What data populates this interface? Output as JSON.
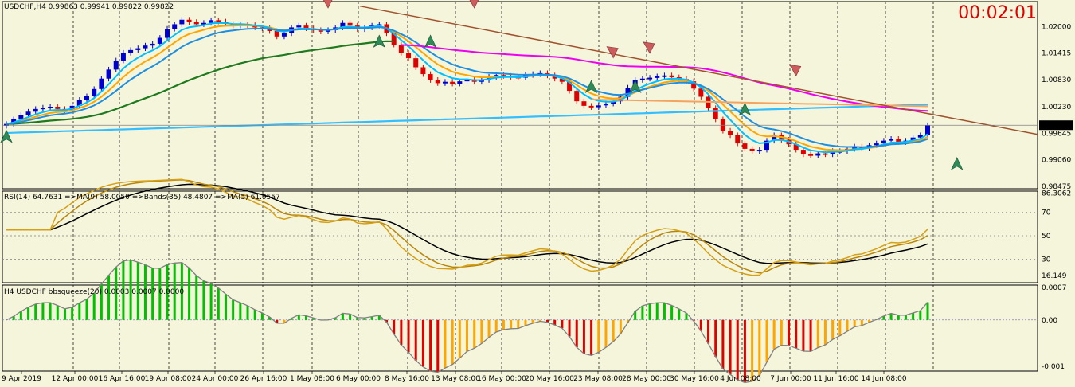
{
  "main_title": "USDCHF,H4  0.99863 0.99941 0.99822 0.99822",
  "clock": "00:02:01",
  "rsi_title": "RSI(14) 64.7631  =>MA(9) 58.0050  =>Bands(35) 48.4807  =>MA(5) 61.9557",
  "bbs_title": "H4 USDCHF bbsqueeze(20) 0.0003 0.0007 0.0000",
  "colors": {
    "background": "#F5F5DC",
    "bull": "#0000CD",
    "bear": "#E00000",
    "ma_fast": "#FFA500",
    "ma_mid": "#00BFFF",
    "ma_slow": "#1E8FE0",
    "ma_long": "#1F7A1F",
    "ma_200": "#33BFFF",
    "magenta": "#EE00EE",
    "trendline": "#A0522D",
    "peach_level": "#F4A460",
    "rsi": "#D4A017",
    "rsi_ma": "#B8860B",
    "rsi_bands": "#000000",
    "hist_green": "#00C000",
    "hist_red": "#E00000",
    "hist_orange": "#FFA500"
  },
  "chart_data": [
    {
      "type": "candlestick",
      "symbol": "USDCHF",
      "timeframe": "H4",
      "price_axis_labels": [
        "1.02000",
        "1.01415",
        "1.00830",
        "1.00230",
        "0.99645",
        "0.99060",
        "0.98475"
      ],
      "price_axis_values": [
        1.02,
        1.01415,
        1.0083,
        1.0023,
        0.99645,
        0.9906,
        0.98475
      ],
      "current_price_label": "0.99822",
      "current_price": 0.99822,
      "ylim": [
        0.9842,
        1.0255
      ],
      "time_labels": [
        "9 Apr 2019",
        "12 Apr 00:00",
        "16 Apr 16:00",
        "19 Apr 08:00",
        "24 Apr 00:00",
        "26 Apr 16:00",
        "1 May 08:00",
        "6 May 00:00",
        "8 May 16:00",
        "13 May 08:00",
        "16 May 00:00",
        "20 May 16:00",
        "23 May 08:00",
        "28 May 00:00",
        "30 May 16:00",
        "4 Jun 08:00",
        "7 Jun 00:00",
        "11 Jun 16:00",
        "14 Jun 08:00"
      ],
      "closes": [
        0.9985,
        0.9995,
        1.0005,
        1.0012,
        1.0018,
        1.0021,
        1.0023,
        1.0018,
        1.0015,
        1.0025,
        1.0038,
        1.0046,
        1.0062,
        1.0085,
        1.0105,
        1.0125,
        1.0142,
        1.0148,
        1.0152,
        1.0158,
        1.0162,
        1.0175,
        1.0195,
        1.0205,
        1.0215,
        1.021,
        1.0205,
        1.0208,
        1.0214,
        1.0211,
        1.0206,
        1.0202,
        1.0205,
        1.0203,
        1.0198,
        1.0196,
        1.019,
        1.0178,
        1.0185,
        1.0198,
        1.0202,
        1.0196,
        1.0192,
        1.0189,
        1.0192,
        1.0198,
        1.0208,
        1.0202,
        1.0194,
        1.0198,
        1.0202,
        1.0205,
        1.0185,
        1.016,
        1.0142,
        1.013,
        1.011,
        1.0095,
        1.0082,
        1.0075,
        1.0078,
        1.0074,
        1.0079,
        1.0083,
        1.0078,
        1.0082,
        1.0089,
        1.0093,
        1.0091,
        1.0089,
        1.0087,
        1.0093,
        1.0095,
        1.0097,
        1.0092,
        1.0085,
        1.0078,
        1.0058,
        1.0035,
        1.0025,
        1.0022,
        1.0026,
        1.003,
        1.0035,
        1.0045,
        1.0065,
        1.0082,
        1.0085,
        1.0087,
        1.009,
        1.0092,
        1.0088,
        1.0084,
        1.0079,
        1.0063,
        1.0045,
        1.002,
        0.9995,
        0.997,
        0.996,
        0.9942,
        0.993,
        0.9925,
        0.9928,
        0.9948,
        0.996,
        0.995,
        0.994,
        0.9928,
        0.9918,
        0.9915,
        0.992,
        0.9918,
        0.9925,
        0.9925,
        0.993,
        0.9935,
        0.9932,
        0.9938,
        0.9942,
        0.9948,
        0.9952,
        0.9945,
        0.9948,
        0.9955,
        0.996,
        0.9982
      ],
      "annotations": [
        {
          "kind": "sell_arrow",
          "at_index": 44,
          "price": 1.0255
        },
        {
          "kind": "sell_arrow",
          "at_index": 64,
          "price": 1.0255
        },
        {
          "kind": "sell_arrow",
          "at_index": 83,
          "price": 1.0145
        },
        {
          "kind": "sell_arrow",
          "at_index": 88,
          "price": 1.0155
        },
        {
          "kind": "sell_arrow",
          "at_index": 108,
          "price": 1.0105
        },
        {
          "kind": "buy_arrow",
          "at_index": 0,
          "price": 0.9955
        },
        {
          "kind": "buy_arrow",
          "at_index": 51,
          "price": 1.0165
        },
        {
          "kind": "buy_arrow",
          "at_index": 58,
          "price": 1.0165
        },
        {
          "kind": "buy_arrow",
          "at_index": 80,
          "price": 1.0065
        },
        {
          "kind": "buy_arrow",
          "at_index": 86,
          "price": 1.0065
        },
        {
          "kind": "buy_arrow",
          "at_index": 101,
          "price": 1.0015
        },
        {
          "kind": "buy_arrow",
          "at_index": 130,
          "price": 0.9895
        }
      ]
    },
    {
      "type": "line",
      "name": "RSI(14)",
      "axis_labels": [
        "86.3062",
        "70",
        "50",
        "30",
        "16.149"
      ],
      "axis_values": [
        86.3062,
        70,
        50,
        30,
        16.149
      ],
      "ylim": [
        10,
        88
      ]
    },
    {
      "type": "bar",
      "name": "bbsqueeze(20)",
      "axis_labels": [
        "0.0007",
        "0.00",
        "-0.001"
      ],
      "axis_values": [
        0.0007,
        0.0,
        -0.001
      ],
      "ylim": [
        -0.0011,
        0.00075
      ]
    }
  ]
}
